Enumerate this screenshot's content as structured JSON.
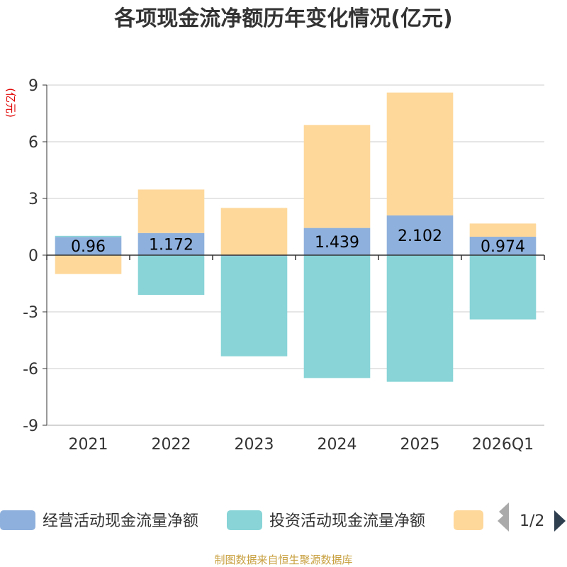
{
  "chart_data": {
    "type": "bar",
    "stacked": true,
    "title": "各项现金流净额历年变化情况(亿元)",
    "ylabel": "(亿元)",
    "ylim": [
      -9,
      9
    ],
    "yticks": [
      9,
      6,
      3,
      0,
      -3,
      -6,
      -9
    ],
    "categories": [
      "2021",
      "2022",
      "2023",
      "2024",
      "2025",
      "2026Q1"
    ],
    "series": [
      {
        "name": "经营活动现金流量净额",
        "color": "#8eb0dc",
        "values": [
          0.96,
          1.172,
          -0.05,
          1.439,
          2.102,
          0.974
        ],
        "labels": [
          "0.96",
          "1.172",
          "",
          "1.439",
          "2.102",
          "0.974"
        ]
      },
      {
        "name": "投资活动现金流量净额",
        "color": "#88d4d7",
        "values": [
          0.06,
          -2.1,
          -5.3,
          -6.5,
          -6.7,
          -3.4
        ]
      },
      {
        "name": "",
        "color": "#fed89b",
        "values": [
          -1.0,
          2.3,
          2.5,
          5.45,
          6.5,
          0.7
        ]
      }
    ],
    "grid": true,
    "legend": "bottom"
  },
  "legend": {
    "items": [
      {
        "label": "经营活动现金流量净额",
        "color": "#8eb0dc"
      },
      {
        "label": "投资活动现金流量净额",
        "color": "#88d4d7"
      },
      {
        "label": "",
        "color": "#fed89b"
      }
    ],
    "page": "1/2"
  },
  "source": "制图数据来自恒生聚源数据库"
}
